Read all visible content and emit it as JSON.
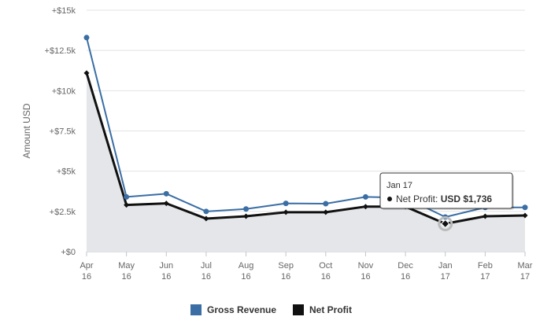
{
  "chart_data": {
    "type": "line",
    "ylabel": "Amount USD",
    "xlabel": "",
    "categories": [
      [
        "Apr",
        "16"
      ],
      [
        "May",
        "16"
      ],
      [
        "Jun",
        "16"
      ],
      [
        "Jul",
        "16"
      ],
      [
        "Aug",
        "16"
      ],
      [
        "Sep",
        "16"
      ],
      [
        "Oct",
        "16"
      ],
      [
        "Nov",
        "16"
      ],
      [
        "Dec",
        "16"
      ],
      [
        "Jan",
        "17"
      ],
      [
        "Feb",
        "17"
      ],
      [
        "Mar",
        "17"
      ]
    ],
    "ylim": [
      0,
      15000
    ],
    "yticks": [
      0,
      2500,
      5000,
      7500,
      10000,
      12500,
      15000
    ],
    "ytick_labels": [
      "+$0",
      "+$2.5k",
      "+$5k",
      "+$7.5k",
      "+$10k",
      "+$12.5k",
      "+$15k"
    ],
    "grid": true,
    "legend_position": "bottom-center",
    "series": [
      {
        "name": "Gross Revenue",
        "color": "#3a6ea5",
        "marker": "circle",
        "values": [
          13300,
          3400,
          3600,
          2500,
          2650,
          3000,
          2980,
          3400,
          3350,
          2150,
          2750,
          2750
        ]
      },
      {
        "name": "Net Profit",
        "color": "#111111",
        "marker": "diamond",
        "fill": "#e4e6e9",
        "values": [
          11100,
          2900,
          3000,
          2050,
          2200,
          2450,
          2450,
          2800,
          2800,
          1736,
          2200,
          2250
        ]
      }
    ],
    "tooltip": {
      "header": "Jan 17",
      "series_label": "Net Profit:",
      "value_label": "USD $1,736",
      "category_index": 9,
      "series_index": 1
    }
  }
}
